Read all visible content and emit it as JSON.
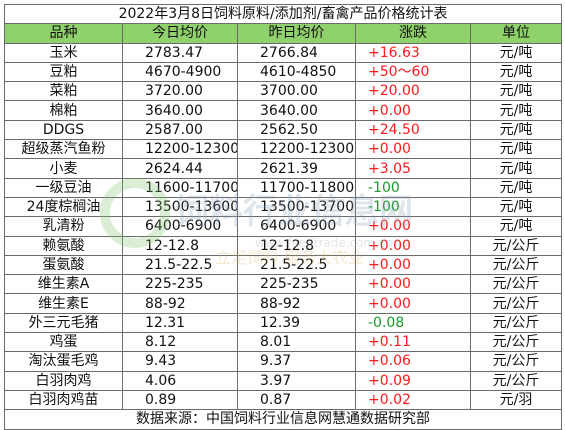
{
  "title": "2022年3月8日饲料原料/添加剂/畜禽产品价格统计表",
  "headers": [
    "品种",
    "今日均价",
    "昨日均价",
    "涨跌",
    "单位"
  ],
  "rows": [
    {
      "name": "玉米",
      "today": "2783.47",
      "yesterday": "2766.84",
      "change": "+16.63",
      "dir": "up",
      "unit": "元/吨"
    },
    {
      "name": "豆粕",
      "today": "4670-4900",
      "yesterday": "4610-4850",
      "change": "+50～60",
      "dir": "up",
      "unit": "元/吨"
    },
    {
      "name": "菜粕",
      "today": "3720.00",
      "yesterday": "3700.00",
      "change": "+20.00",
      "dir": "up",
      "unit": "元/吨"
    },
    {
      "name": "棉粕",
      "today": "3640.00",
      "yesterday": "3640.00",
      "change": "+0.00",
      "dir": "up",
      "unit": "元/吨"
    },
    {
      "name": "DDGS",
      "today": "2587.00",
      "yesterday": "2562.50",
      "change": "+24.50",
      "dir": "up",
      "unit": "元/吨"
    },
    {
      "name": "超级蒸汽鱼粉",
      "today": "12200-12300",
      "yesterday": "12200-12300",
      "change": "+0.00",
      "dir": "up",
      "unit": "元/吨"
    },
    {
      "name": "小麦",
      "today": "2624.44",
      "yesterday": "2621.39",
      "change": "+3.05",
      "dir": "up",
      "unit": "元/吨"
    },
    {
      "name": "一级豆油",
      "today": "11600-11700",
      "yesterday": "11700-11800",
      "change": "-100",
      "dir": "down",
      "unit": "元/吨"
    },
    {
      "name": "24度棕榈油",
      "today": "13500-13600",
      "yesterday": "13500-13700",
      "change": "-100",
      "dir": "down",
      "unit": "元/吨"
    },
    {
      "name": "乳清粉",
      "today": "6400-6900",
      "yesterday": "6400-6900",
      "change": "+0.00",
      "dir": "up",
      "unit": "元/吨"
    },
    {
      "name": "赖氨酸",
      "today": "12-12.8",
      "yesterday": "12-12.8",
      "change": "+0.00",
      "dir": "up",
      "unit": "元/公斤"
    },
    {
      "name": "蛋氨酸",
      "today": "21.5-22.5",
      "yesterday": "21.5-22.5",
      "change": "+0.00",
      "dir": "up",
      "unit": "元/公斤"
    },
    {
      "name": "维生素A",
      "today": "225-235",
      "yesterday": "225-235",
      "change": "+0.00",
      "dir": "up",
      "unit": "元/公斤"
    },
    {
      "name": "维生素E",
      "today": "88-92",
      "yesterday": "88-92",
      "change": "+0.00",
      "dir": "up",
      "unit": "元/公斤"
    },
    {
      "name": "外三元毛猪",
      "today": "12.31",
      "yesterday": "12.39",
      "change": "-0.08",
      "dir": "down",
      "unit": "元/公斤"
    },
    {
      "name": "鸡蛋",
      "today": "8.12",
      "yesterday": "8.01",
      "change": "+0.11",
      "dir": "up",
      "unit": "元/公斤"
    },
    {
      "name": "淘汰蛋毛鸡",
      "today": "9.43",
      "yesterday": "9.37",
      "change": "+0.06",
      "dir": "up",
      "unit": "元/公斤"
    },
    {
      "name": "白羽肉鸡",
      "today": "4.06",
      "yesterday": "3.97",
      "change": "+0.09",
      "dir": "up",
      "unit": "元/公斤"
    },
    {
      "name": "白羽肉鸡苗",
      "today": "0.89",
      "yesterday": "0.87",
      "change": "+0.02",
      "dir": "up",
      "unit": "元/羽"
    }
  ],
  "footer": "数据来源：中国饲料行业信息网慧通数据研究部",
  "watermark": {
    "brand": "饲料行业信息网",
    "site": "www.feedtrade.com.cn",
    "slogan": "立足饲料 服务大农业"
  },
  "colors": {
    "header_bg": "#8fd16a",
    "up": "#ff1a1a",
    "down": "#1a9b2a",
    "border": "#6b6b6b"
  }
}
